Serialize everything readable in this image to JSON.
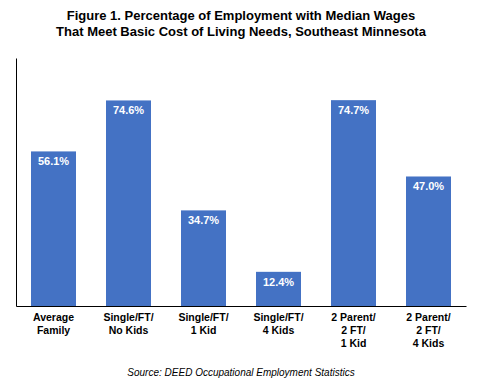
{
  "chart_data": {
    "type": "bar",
    "title": "Figure 1. Percentage of Employment with Median Wages\nThat Meet Basic Cost of Living Needs, Southeast Minnesota",
    "categories": [
      "Average\nFamily",
      "Single/FT/\nNo Kids",
      "Single/FT/\n1 Kid",
      "Single/FT/\n4 Kids",
      "2 Parent/\n2 FT/\n1 Kid",
      "2 Parent/\n2 FT/\n4 Kids"
    ],
    "values": [
      56.1,
      74.6,
      34.7,
      12.4,
      74.7,
      47.0
    ],
    "value_labels": [
      "56.1%",
      "74.6%",
      "34.7%",
      "12.4%",
      "74.7%",
      "47.0%"
    ],
    "data_labels": true,
    "color": "#4472C4",
    "ylim": [
      0,
      90
    ],
    "tick_labels": "x",
    "grid": false,
    "annotations": [
      "Source: DEED Occupational Employment Statistics"
    ]
  }
}
